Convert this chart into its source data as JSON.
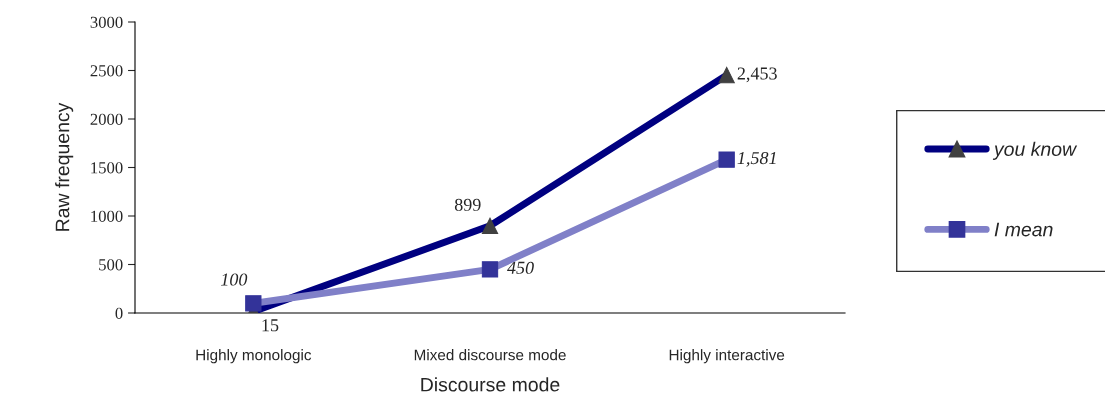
{
  "chart_data": {
    "type": "line",
    "xlabel": "Discourse mode",
    "ylabel": "Raw frequency",
    "categories": [
      "Highly monologic",
      "Mixed discourse mode",
      "Highly interactive"
    ],
    "series": [
      {
        "name": "you know",
        "color": "#000080",
        "marker": "triangle",
        "values": [
          15,
          899,
          2453
        ],
        "value_labels": [
          "15",
          "899",
          "2,453"
        ]
      },
      {
        "name": "I mean",
        "color": "#8080c8",
        "marker": "square",
        "values": [
          100,
          450,
          1581
        ],
        "value_labels": [
          "100",
          "450",
          "1,581"
        ]
      }
    ],
    "ylim": [
      0,
      3000
    ],
    "yticks": [
      0,
      500,
      1000,
      1500,
      2000,
      2500,
      3000
    ],
    "grid": false,
    "legend": "right"
  }
}
